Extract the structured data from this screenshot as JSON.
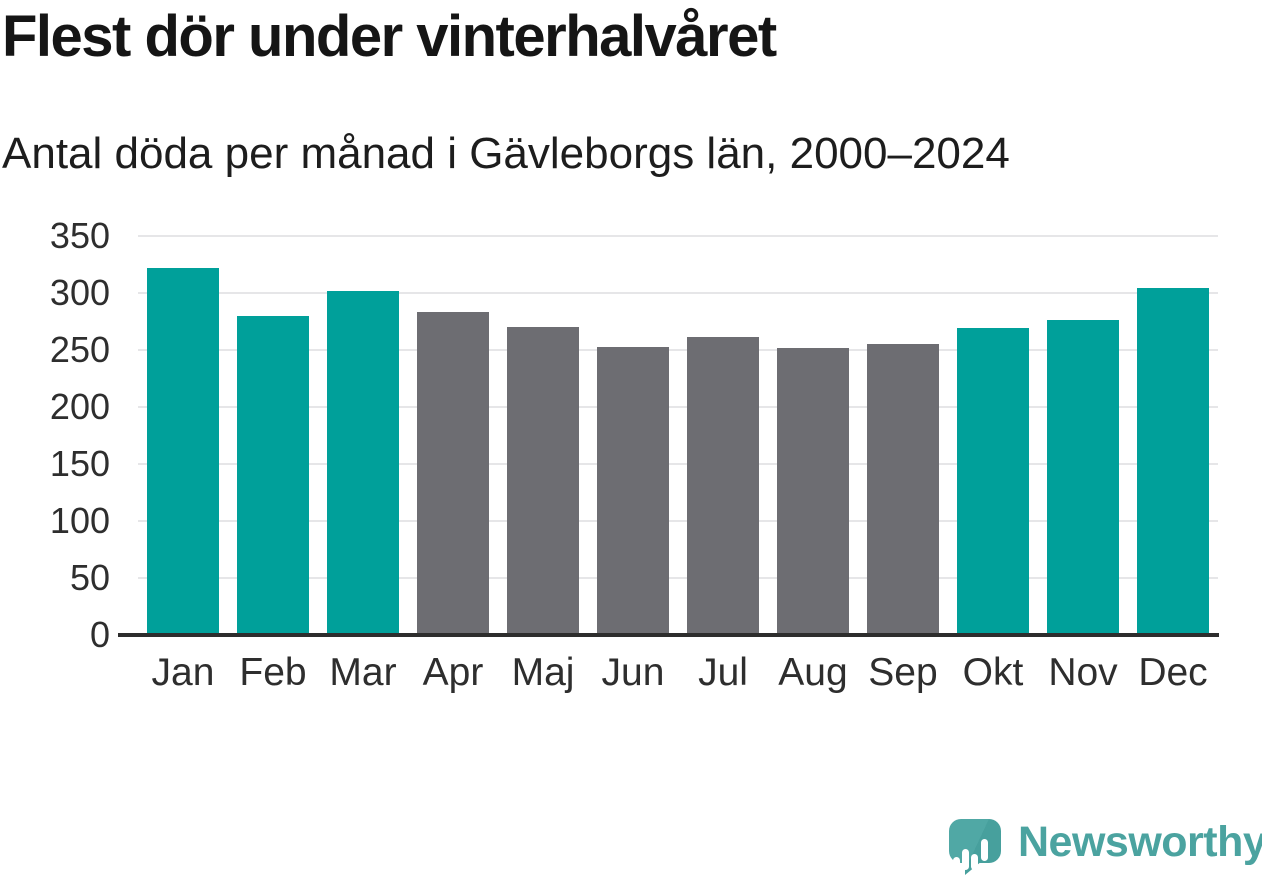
{
  "chart_data": {
    "type": "bar",
    "title": "Flest dör under vinterhalvåret",
    "subtitle": "Antal döda per månad i Gävleborgs län, 2000–2024",
    "categories": [
      "Jan",
      "Feb",
      "Mar",
      "Apr",
      "Maj",
      "Jun",
      "Jul",
      "Aug",
      "Sep",
      "Okt",
      "Nov",
      "Dec"
    ],
    "values": [
      322,
      280,
      302,
      283,
      270,
      253,
      261,
      252,
      255,
      269,
      276,
      304
    ],
    "bar_colors": [
      "#00a09a",
      "#00a09a",
      "#00a09a",
      "#6d6d72",
      "#6d6d72",
      "#6d6d72",
      "#6d6d72",
      "#6d6d72",
      "#6d6d72",
      "#00a09a",
      "#00a09a",
      "#00a09a"
    ],
    "ylim": [
      0,
      350
    ],
    "yticks": [
      0,
      50,
      100,
      150,
      200,
      250,
      300,
      350
    ],
    "xlabel": "",
    "ylabel": "",
    "grid": "horizontal",
    "legend": "none",
    "colors": {
      "winter_months": "#00a09a",
      "summer_months": "#6d6d72",
      "axis_line": "#2d2d2d",
      "gridline": "#e6e6e8",
      "text": "#2e2e2e"
    }
  },
  "brand": {
    "name": "Newsworthy",
    "color": "#4ba3a0"
  }
}
